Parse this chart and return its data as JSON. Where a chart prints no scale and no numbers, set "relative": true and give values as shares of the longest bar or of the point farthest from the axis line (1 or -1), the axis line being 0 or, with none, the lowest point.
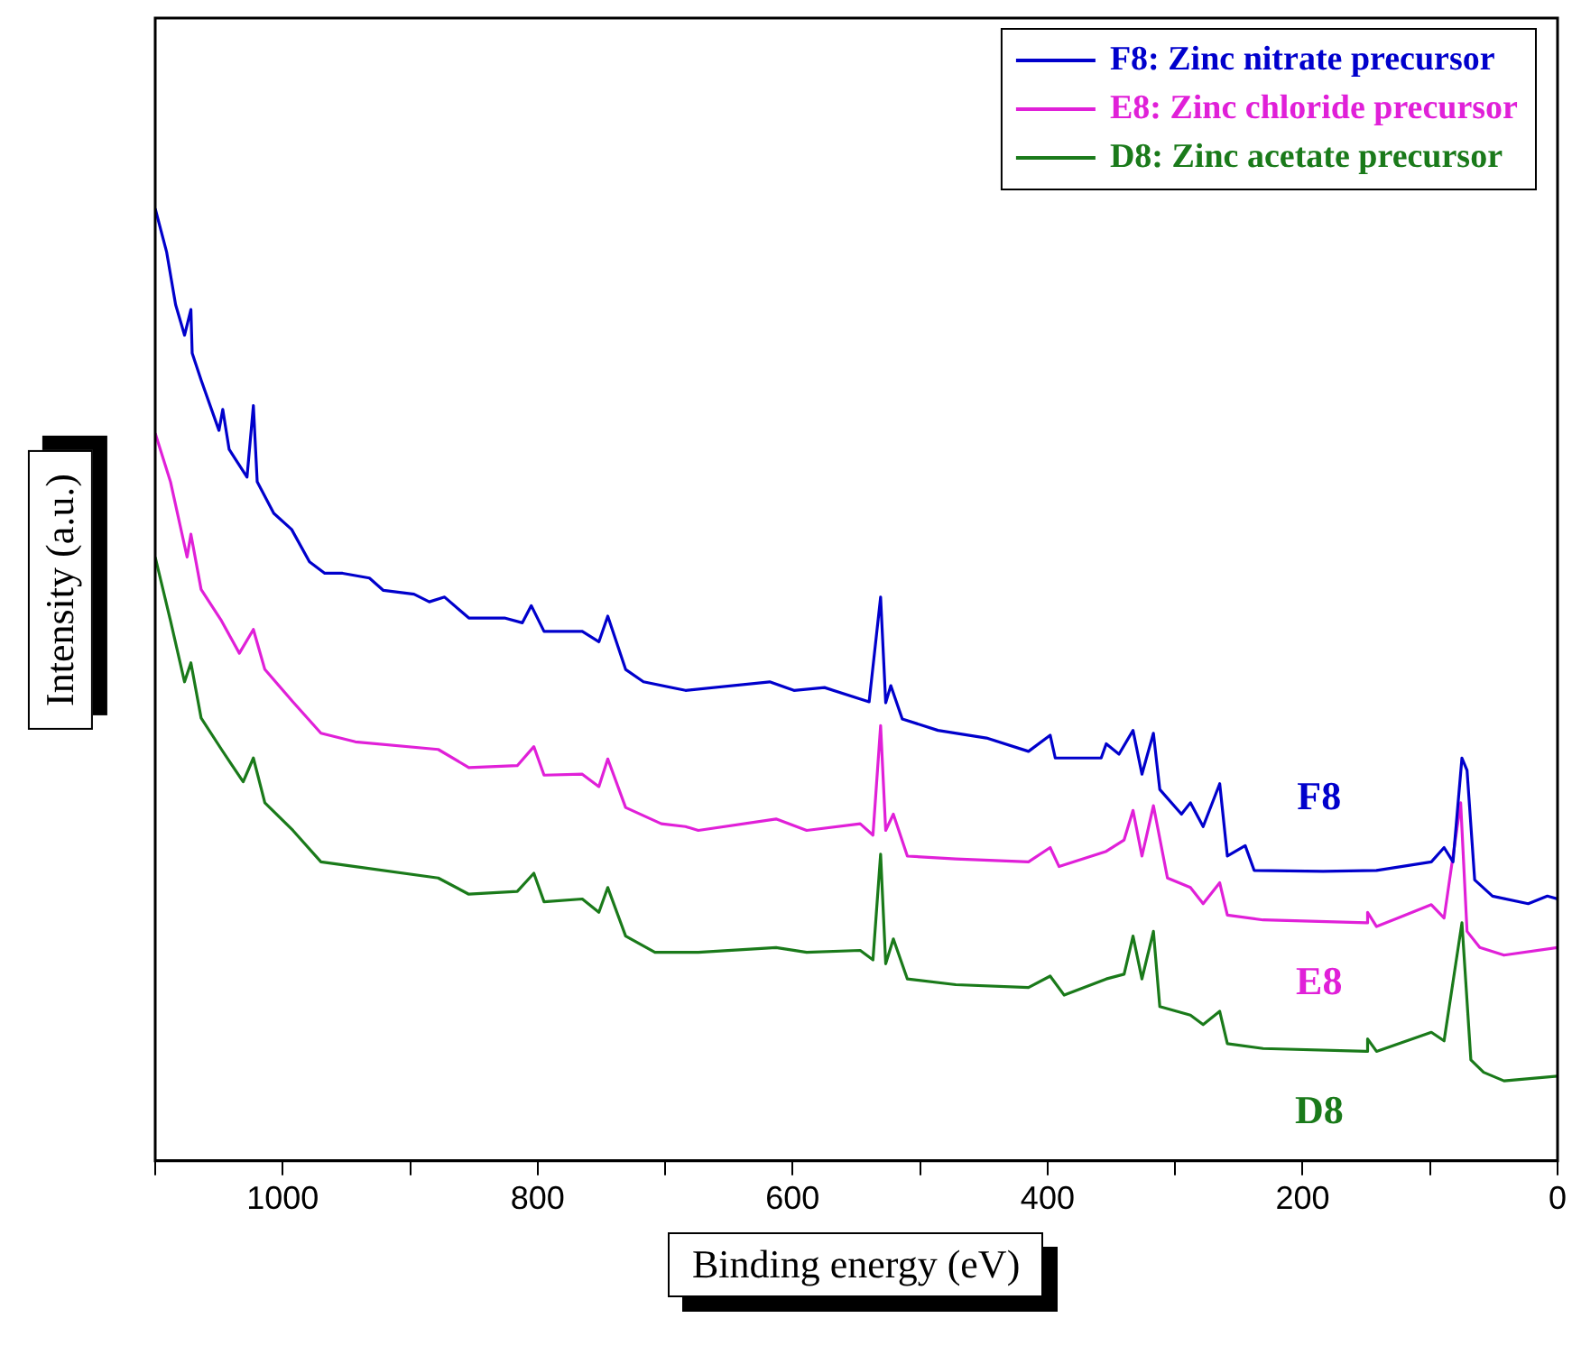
{
  "chart_data": {
    "type": "line",
    "relative": true,
    "xlabel": "Binding energy (eV)",
    "ylabel": "Intensity (a.u.)",
    "xlim": [
      1100,
      0
    ],
    "xticks": [
      {
        "value": 1100,
        "label": null
      },
      1000,
      {
        "value": 900,
        "label": null
      },
      800,
      {
        "value": 700,
        "label": null
      },
      600,
      {
        "value": 500,
        "label": null
      },
      400,
      {
        "value": 300,
        "label": null
      },
      200,
      {
        "value": 100,
        "label": null
      },
      0
    ],
    "legend": "top right",
    "marker": "none",
    "line_style": "solid",
    "grid": false,
    "series": [
      {
        "name": "F8: Zinc nitrate precursor",
        "color": "#0000cc",
        "x": [
          1100,
          1091,
          1084,
          1077,
          1072,
          1071,
          1064,
          1050,
          1047,
          1042,
          1028,
          1023,
          1020,
          1007,
          993,
          979,
          967,
          953,
          932,
          921,
          897,
          885,
          873,
          854,
          826,
          812,
          805,
          795,
          765,
          752,
          745,
          731,
          717,
          684,
          618,
          599,
          575,
          540,
          531,
          527,
          523,
          514,
          486,
          448,
          415,
          398,
          394,
          358,
          354,
          344,
          333,
          326,
          317,
          312,
          295,
          288,
          278,
          265,
          259,
          245,
          238,
          184,
          142,
          99,
          89,
          82,
          75,
          71,
          65,
          51,
          23,
          8,
          0
        ],
        "values": [
          1.0,
          0.954,
          0.899,
          0.867,
          0.894,
          0.848,
          0.82,
          0.767,
          0.789,
          0.747,
          0.718,
          0.793,
          0.713,
          0.68,
          0.663,
          0.629,
          0.617,
          0.617,
          0.612,
          0.599,
          0.595,
          0.587,
          0.592,
          0.57,
          0.57,
          0.565,
          0.583,
          0.556,
          0.556,
          0.545,
          0.572,
          0.516,
          0.503,
          0.494,
          0.503,
          0.494,
          0.497,
          0.482,
          0.592,
          0.481,
          0.499,
          0.464,
          0.452,
          0.444,
          0.43,
          0.447,
          0.423,
          0.423,
          0.438,
          0.427,
          0.452,
          0.406,
          0.449,
          0.39,
          0.364,
          0.376,
          0.351,
          0.396,
          0.32,
          0.331,
          0.305,
          0.304,
          0.305,
          0.314,
          0.329,
          0.314,
          0.423,
          0.41,
          0.295,
          0.278,
          0.27,
          0.278,
          0.275
        ]
      },
      {
        "name": "E8: Zinc chloride precursor",
        "color": "#e020d8",
        "x": [
          1100,
          1088,
          1075,
          1072,
          1064,
          1048,
          1034,
          1023,
          1014,
          992,
          970,
          943,
          878,
          854,
          816,
          803,
          795,
          765,
          752,
          745,
          731,
          703,
          684,
          674,
          613,
          589,
          547,
          537,
          531,
          527,
          521,
          510,
          472,
          415,
          398,
          391,
          354,
          340,
          333,
          326,
          317,
          306,
          288,
          278,
          265,
          259,
          231,
          150,
          149,
          142,
          99,
          89,
          76,
          71,
          61,
          42,
          0
        ],
        "values": [
          0.764,
          0.713,
          0.634,
          0.658,
          0.6,
          0.567,
          0.533,
          0.558,
          0.516,
          0.482,
          0.449,
          0.44,
          0.432,
          0.413,
          0.415,
          0.435,
          0.405,
          0.406,
          0.393,
          0.422,
          0.371,
          0.354,
          0.351,
          0.347,
          0.359,
          0.347,
          0.354,
          0.342,
          0.457,
          0.347,
          0.364,
          0.32,
          0.317,
          0.314,
          0.329,
          0.309,
          0.325,
          0.337,
          0.368,
          0.32,
          0.373,
          0.297,
          0.287,
          0.27,
          0.292,
          0.258,
          0.253,
          0.25,
          0.261,
          0.246,
          0.269,
          0.255,
          0.376,
          0.241,
          0.224,
          0.216,
          0.224
        ]
      },
      {
        "name": "D8: Zinc acetate precursor",
        "color": "#1a7a1a",
        "x": [
          1100,
          1088,
          1077,
          1072,
          1064,
          1048,
          1031,
          1023,
          1014,
          992,
          970,
          943,
          878,
          854,
          816,
          803,
          795,
          765,
          752,
          745,
          731,
          708,
          684,
          674,
          613,
          589,
          547,
          537,
          531,
          527,
          521,
          510,
          472,
          415,
          398,
          387,
          354,
          340,
          333,
          326,
          317,
          312,
          288,
          278,
          265,
          259,
          231,
          150,
          149,
          142,
          99,
          89,
          75,
          68,
          58,
          42,
          0
        ],
        "values": [
          0.634,
          0.567,
          0.503,
          0.523,
          0.465,
          0.432,
          0.398,
          0.423,
          0.376,
          0.347,
          0.314,
          0.309,
          0.297,
          0.28,
          0.283,
          0.302,
          0.272,
          0.275,
          0.261,
          0.287,
          0.236,
          0.219,
          0.219,
          0.219,
          0.224,
          0.219,
          0.221,
          0.211,
          0.322,
          0.207,
          0.233,
          0.191,
          0.185,
          0.182,
          0.194,
          0.174,
          0.191,
          0.196,
          0.236,
          0.191,
          0.241,
          0.162,
          0.153,
          0.143,
          0.157,
          0.123,
          0.118,
          0.115,
          0.128,
          0.115,
          0.135,
          0.126,
          0.25,
          0.106,
          0.093,
          0.084,
          0.089
        ]
      }
    ],
    "annotations": [
      "F8",
      "E8",
      "D8"
    ]
  }
}
